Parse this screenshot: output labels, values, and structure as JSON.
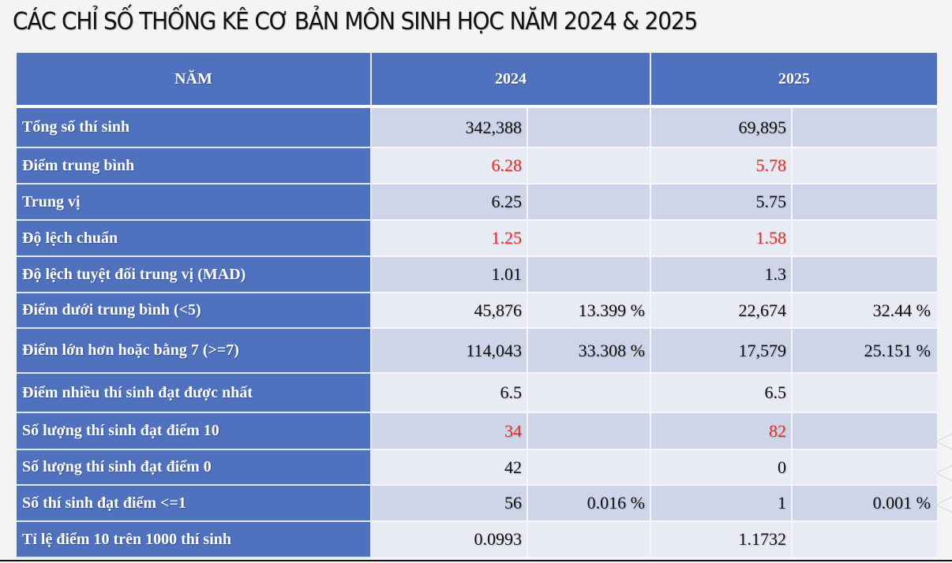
{
  "title": "CÁC CHỈ SỐ THỐNG KÊ CƠ BẢN MÔN SINH HỌC NĂM 2024 & 2025",
  "table": {
    "headers": {
      "label": "NĂM",
      "year_2024": "2024",
      "year_2025": "2025"
    },
    "rows": [
      {
        "label": "Tổng số thí sinh",
        "v2024": "342,388",
        "p2024": "",
        "v2025": "69,895",
        "p2025": "",
        "highlight": false
      },
      {
        "label": "Điểm trung bình",
        "v2024": "6.28",
        "p2024": "",
        "v2025": "5.78",
        "p2025": "",
        "highlight": true
      },
      {
        "label": "Trung vị",
        "v2024": "6.25",
        "p2024": "",
        "v2025": "5.75",
        "p2025": "",
        "highlight": false
      },
      {
        "label": "Độ lệch chuẩn",
        "v2024": "1.25",
        "p2024": "",
        "v2025": "1.58",
        "p2025": "",
        "highlight": true
      },
      {
        "label": "Độ lệch tuyệt đối trung vị (MAD)",
        "v2024": "1.01",
        "p2024": "",
        "v2025": "1.3",
        "p2025": "",
        "highlight": false
      },
      {
        "label": "Điểm dưới trung bình (<5)",
        "v2024": "45,876",
        "p2024": "13.399 %",
        "v2025": "22,674",
        "p2025": "32.44 %",
        "highlight": false
      },
      {
        "label": "Điểm lớn hơn hoặc bằng 7 (>=7)",
        "v2024": "114,043",
        "p2024": "33.308 %",
        "v2025": "17,579",
        "p2025": "25.151 %",
        "highlight": false
      },
      {
        "label": "Điểm nhiều thí sinh đạt được nhất",
        "v2024": "6.5",
        "p2024": "",
        "v2025": "6.5",
        "p2025": "",
        "highlight": false
      },
      {
        "label": "Số lượng thí sinh đạt điểm 10",
        "v2024": "34",
        "p2024": "",
        "v2025": "82",
        "p2025": "",
        "highlight": true
      },
      {
        "label": "Số lượng thí sinh đạt điểm 0",
        "v2024": "42",
        "p2024": "",
        "v2025": "0",
        "p2025": "",
        "highlight": false
      },
      {
        "label": "Số thí sinh đạt điểm <=1",
        "v2024": "56",
        "p2024": "0.016 %",
        "v2025": "1",
        "p2025": "0.001 %",
        "highlight": false
      },
      {
        "label": "Tỉ lệ điểm 10 trên 1000 thí sinh",
        "v2024": "0.0993",
        "p2024": "",
        "v2025": "1.1732",
        "p2025": "",
        "highlight": false
      }
    ]
  },
  "colors": {
    "header_bg": "#4f71be",
    "row_odd_bg": "#cfd5e8",
    "row_even_bg": "#e8eaf4",
    "highlight_text": "#e0302a"
  }
}
